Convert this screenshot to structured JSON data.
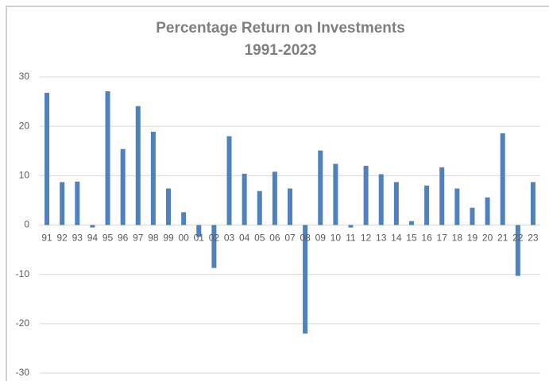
{
  "chart_data": {
    "type": "bar",
    "title": "Percentage Return on Investments",
    "subtitle": "1991-2023",
    "categories": [
      "91",
      "92",
      "93",
      "94",
      "95",
      "96",
      "97",
      "98",
      "99",
      "00",
      "01",
      "02",
      "03",
      "04",
      "05",
      "06",
      "07",
      "08",
      "09",
      "10",
      "11",
      "12",
      "13",
      "14",
      "15",
      "16",
      "17",
      "18",
      "19",
      "20",
      "21",
      "22",
      "23"
    ],
    "values": [
      26.8,
      8.7,
      8.8,
      -0.5,
      27.1,
      15.4,
      24.1,
      18.9,
      7.4,
      2.6,
      -2.4,
      -8.7,
      18.0,
      10.4,
      6.9,
      10.8,
      7.4,
      -22.0,
      15.1,
      12.4,
      -0.5,
      12.0,
      10.3,
      8.7,
      0.8,
      8.0,
      11.7,
      7.4,
      3.5,
      5.6,
      18.6,
      -10.3,
      8.7
    ],
    "color": "#4f81bd",
    "ylim": [
      -30,
      30
    ],
    "yticks": [
      30,
      20,
      10,
      0,
      -10,
      -20,
      -30
    ],
    "grid": true
  }
}
